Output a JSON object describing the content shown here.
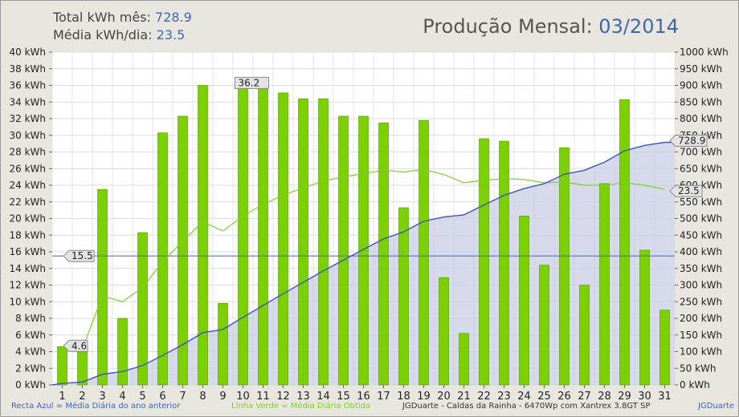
{
  "header": {
    "total_label": "Total kWh mês:",
    "total_value": "728.9",
    "avg_label": "Média kWh/dia:",
    "avg_value": "23.5",
    "title_label": "Produção Mensal:",
    "title_value": "03/2014"
  },
  "footer": {
    "blue_legend": "Recta Azul = Média Diária do ano anterior",
    "green_legend": "Linha Verde = Média Diária Obtida",
    "installation": "JGDuarte  -  Caldas da Rainha  -  6470Wp com Xantrex 3.8GT SP",
    "credit": "JGDuarte"
  },
  "colors": {
    "bar": "#7dd000",
    "bar_dark": "#4c9a00",
    "green_line": "#7ad22a",
    "blue_line": "#3d55b8",
    "area_fill": "#c8cee4",
    "ref_line": "#4a74c9"
  },
  "chart_data": {
    "type": "bar",
    "categories": [
      "1",
      "2",
      "3",
      "4",
      "5",
      "6",
      "7",
      "8",
      "9",
      "10",
      "11",
      "12",
      "13",
      "14",
      "15",
      "16",
      "17",
      "18",
      "19",
      "20",
      "21",
      "22",
      "23",
      "24",
      "25",
      "26",
      "27",
      "28",
      "29",
      "30",
      "31"
    ],
    "series": [
      {
        "values": [
          4.6,
          4.0,
          23.5,
          8.0,
          18.3,
          30.3,
          32.3,
          36.0,
          9.8,
          36.2,
          35.8,
          35.1,
          34.4,
          34.4,
          32.3,
          32.3,
          31.5,
          21.3,
          31.8,
          12.9,
          6.2,
          29.6,
          29.3,
          20.3,
          14.4,
          28.5,
          12.0,
          24.2,
          34.3,
          16.2,
          9.0
        ]
      },
      {
        "values": [
          4.6,
          4.3,
          10.7,
          10.0,
          11.7,
          14.8,
          17.3,
          19.6,
          18.5,
          20.3,
          21.7,
          22.8,
          23.7,
          24.5,
          25.0,
          25.4,
          25.8,
          25.6,
          25.9,
          25.3,
          24.3,
          24.6,
          24.8,
          24.7,
          24.3,
          24.4,
          24.0,
          24.0,
          24.3,
          24.0,
          23.5
        ]
      },
      {
        "values": [
          4.6,
          8.6,
          32.1,
          40.1,
          58.4,
          88.7,
          121.0,
          157.0,
          166.8,
          203.0,
          238.8,
          273.9,
          308.3,
          342.7,
          375.0,
          407.3,
          438.8,
          460.1,
          491.9,
          504.8,
          511.0,
          540.6,
          569.9,
          590.2,
          604.6,
          633.1,
          645.1,
          669.3,
          703.6,
          719.8,
          728.9
        ]
      }
    ],
    "reference_value": 15.5,
    "callouts": {
      "left_first": "4.6",
      "left_ref": "15.5",
      "top_max": "36.2",
      "right_total": "728.9",
      "right_avg": "23.5"
    },
    "y_left": {
      "ticks": [
        "0 kWh",
        "2 kWh",
        "4 kWh",
        "6 kWh",
        "8 kWh",
        "10 kWh",
        "12 kWh",
        "14 kWh",
        "16 kWh",
        "18 kWh",
        "20 kWh",
        "22 kWh",
        "24 kWh",
        "26 kWh",
        "28 kWh",
        "30 kWh",
        "32 kWh",
        "34 kWh",
        "36 kWh",
        "38 kWh",
        "40 kWh"
      ],
      "range": [
        0,
        40
      ]
    },
    "y_right": {
      "ticks": [
        "0 kWh",
        "50 kWh",
        "100 kWh",
        "150 kWh",
        "200 kWh",
        "250 kWh",
        "300 kWh",
        "350 kWh",
        "400 kWh",
        "450 kWh",
        "500 kWh",
        "550 kWh",
        "600 kWh",
        "650 kWh",
        "700 kWh",
        "750 kWh",
        "800 kWh",
        "850 kWh",
        "900 kWh",
        "950 kWh",
        "1000 kWh"
      ],
      "range": [
        0,
        1000
      ]
    },
    "grid": true
  }
}
